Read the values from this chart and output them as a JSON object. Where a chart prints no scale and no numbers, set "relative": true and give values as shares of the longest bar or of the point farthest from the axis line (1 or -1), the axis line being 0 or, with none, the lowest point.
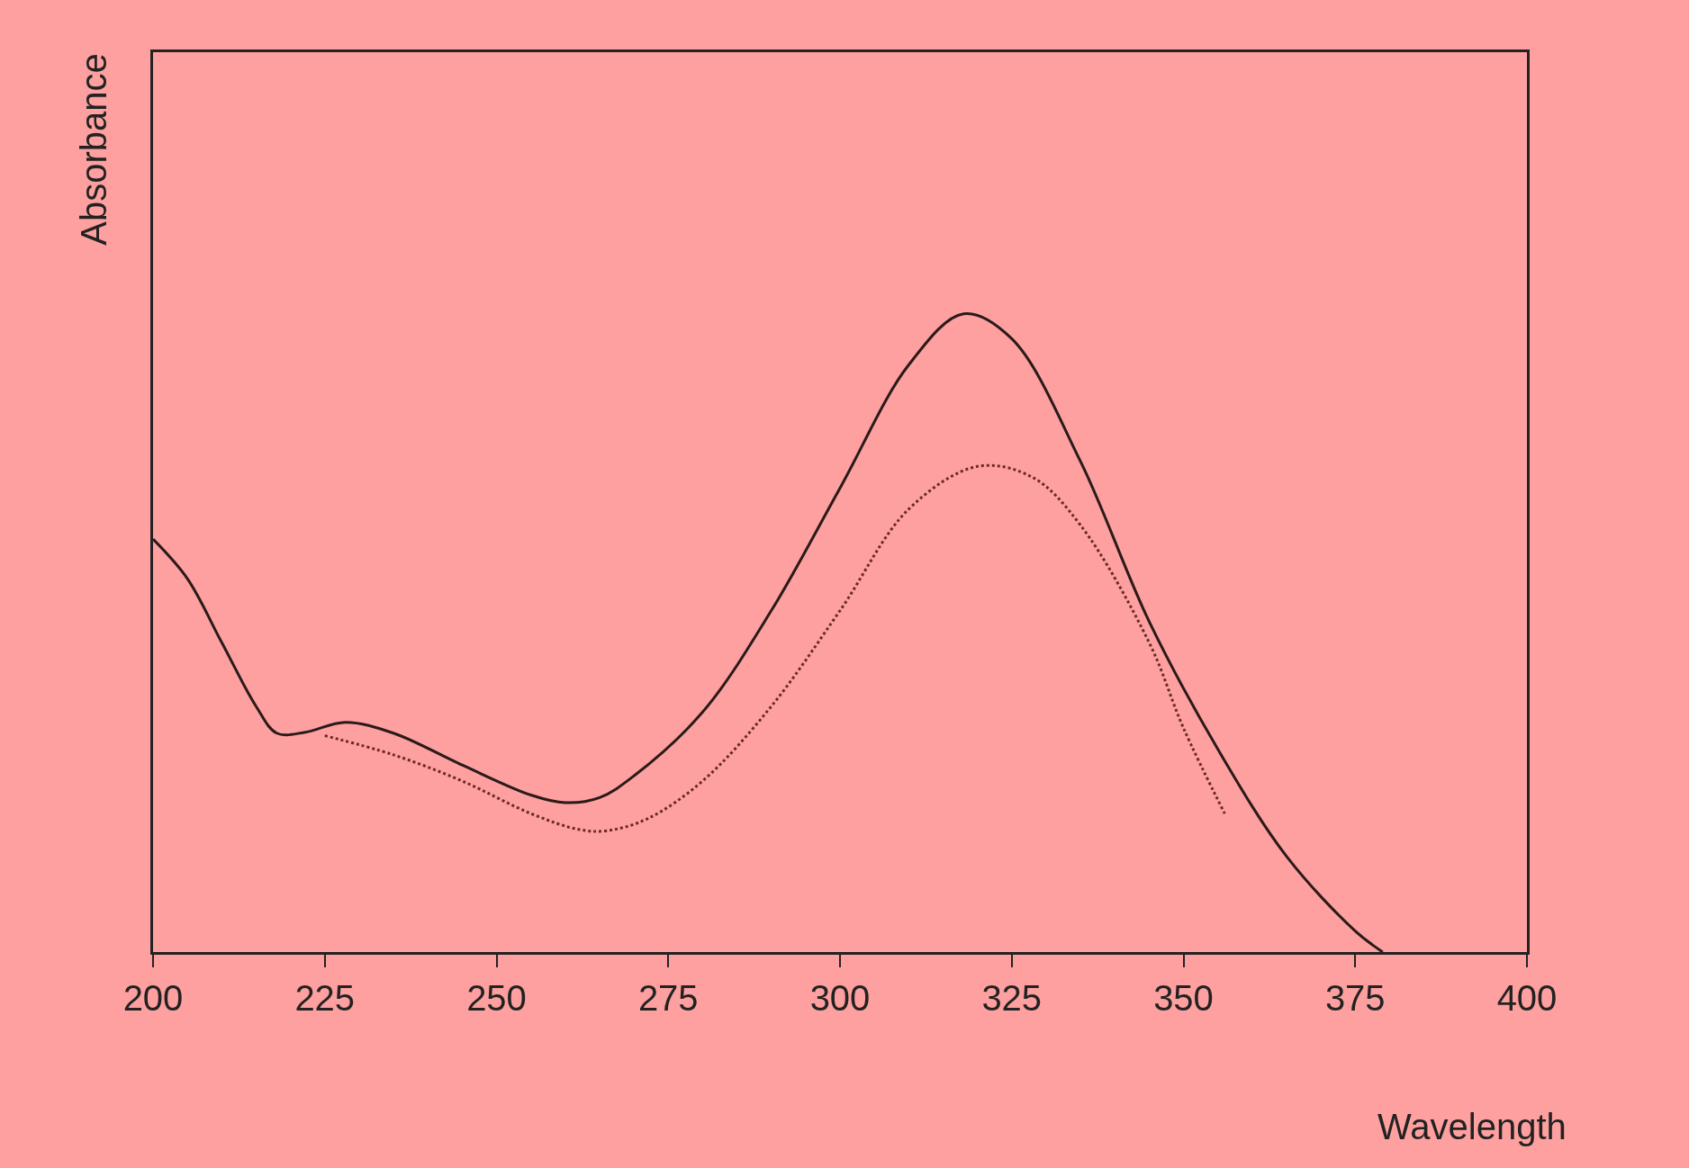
{
  "chart_data": {
    "type": "line",
    "relative": true,
    "xlabel": "Wavelength",
    "ylabel": "Absorbance",
    "xlim": [
      200,
      400
    ],
    "xticks": [
      200,
      225,
      250,
      275,
      300,
      325,
      350,
      375,
      400
    ],
    "tick_labels": "x",
    "grid": false,
    "legend": false,
    "series": [
      {
        "color": "#2a1a1a",
        "line_style": "solid",
        "x": [
          200,
          205,
          210,
          215,
          218,
          222,
          228,
          235,
          245,
          255,
          260,
          265,
          270,
          280,
          290,
          300,
          310,
          318,
          325,
          335,
          345,
          355,
          365,
          375,
          379
        ],
        "values": [
          0.647,
          0.585,
          0.485,
          0.385,
          0.343,
          0.344,
          0.36,
          0.343,
          0.293,
          0.246,
          0.234,
          0.242,
          0.276,
          0.376,
          0.535,
          0.727,
          0.92,
          1,
          0.961,
          0.769,
          0.518,
          0.318,
          0.15,
          0.033,
          0
        ]
      },
      {
        "color": "#6a2a2a",
        "line_style": "dotted",
        "x": [
          225,
          235,
          245,
          255,
          262,
          266,
          272,
          280,
          290,
          300,
          310,
          320,
          328,
          335,
          345,
          350,
          356
        ],
        "values": [
          0.339,
          0.309,
          0.268,
          0.217,
          0.192,
          0.19,
          0.209,
          0.268,
          0.385,
          0.535,
          0.694,
          0.761,
          0.744,
          0.669,
          0.485,
          0.351,
          0.217
        ]
      }
    ]
  }
}
